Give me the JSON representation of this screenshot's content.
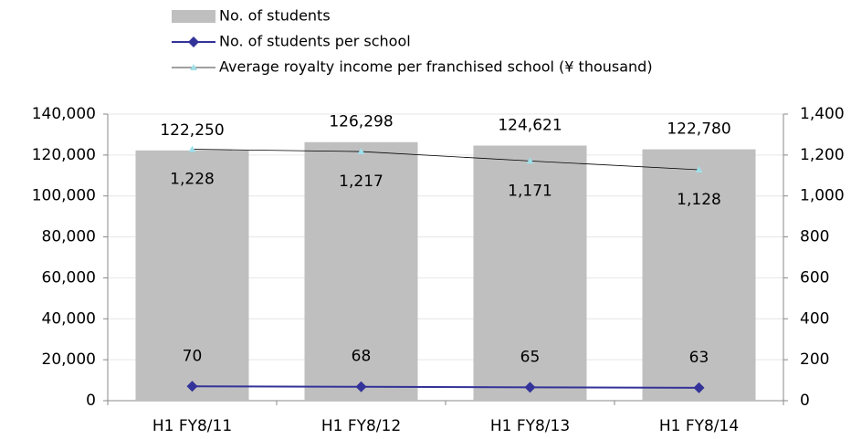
{
  "chart_data": {
    "type": "bar",
    "categories": [
      "H1 FY8/11",
      "H1 FY8/12",
      "H1 FY8/13",
      "H1 FY8/14"
    ],
    "series": [
      {
        "name": "No. of students",
        "type": "bar",
        "color": "#bfbfbf",
        "values": [
          122250,
          126298,
          124621,
          122780
        ],
        "value_labels": [
          "122,250",
          "126,298",
          "124,621",
          "122,780"
        ]
      },
      {
        "name": "No. of students per school",
        "type": "line",
        "axis": "y2",
        "color": "#333399",
        "marker": "diamond",
        "marker_color": "#333399",
        "values": [
          70,
          68,
          65,
          63
        ]
      },
      {
        "name": "Average royalty income per franchised school (¥ thousand)",
        "type": "line",
        "axis": "y2",
        "color": "#000000",
        "marker": "triangle",
        "marker_color": "#9fdfe8",
        "values": [
          1228,
          1217,
          1171,
          1128
        ],
        "value_labels": [
          "1,228",
          "1,217",
          "1,171",
          "1,128"
        ]
      }
    ],
    "ylim": [
      0,
      140000
    ],
    "yticks": [
      0,
      {
        "value": 20000,
        "label": "20,000"
      },
      {
        "value": 40000,
        "label": "40,000"
      },
      {
        "value": 60000,
        "label": "60,000"
      },
      {
        "value": 80000,
        "label": "80,000"
      },
      {
        "value": 100000,
        "label": "100,000"
      },
      {
        "value": 120000,
        "label": "120,000"
      },
      {
        "value": 140000,
        "label": "140,000"
      }
    ],
    "y2lim": [
      0,
      1400
    ],
    "y2ticks": [
      0,
      200,
      400,
      600,
      800,
      {
        "value": 1000,
        "label": "1,000"
      },
      {
        "value": 1200,
        "label": "1,200"
      },
      {
        "value": 1400,
        "label": "1,400"
      }
    ],
    "grid": true,
    "legend": "top"
  }
}
